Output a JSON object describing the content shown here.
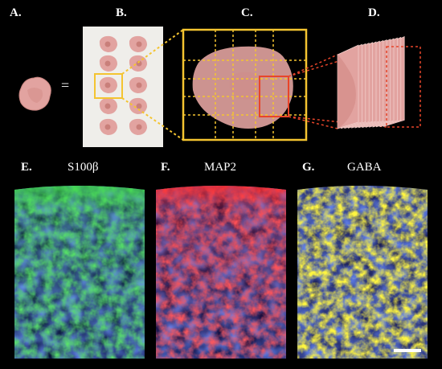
{
  "panels": {
    "a": "A.",
    "b": "B.",
    "c": "C.",
    "d": "D.",
    "e": "E.",
    "f": "F.",
    "g": "G."
  },
  "equals_sign": "=",
  "markers": {
    "e": "S100β",
    "f": "MAP2",
    "g": "GABA"
  },
  "colors": {
    "background": "#000000",
    "tissue": "#e2a3a0",
    "highlight_box": "#f4c430",
    "slice_box": "#e8452a",
    "s100b_channel": "#2ecc40",
    "map2_channel": "#ff2a2a",
    "gaba_channel": "#ffe600",
    "nuclei_channel": "#2a4cff"
  },
  "scale_bar": {
    "visible": true
  }
}
